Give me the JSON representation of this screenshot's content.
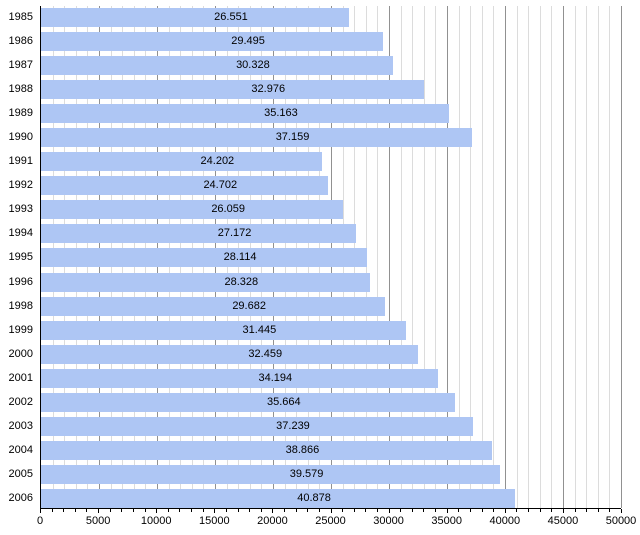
{
  "chart_data": {
    "type": "bar",
    "orientation": "horizontal",
    "title": "",
    "xlabel": "",
    "ylabel": "",
    "categories": [
      "1985",
      "1986",
      "1987",
      "1988",
      "1989",
      "1990",
      "1991",
      "1992",
      "1993",
      "1994",
      "1995",
      "1996",
      "1998",
      "1999",
      "2000",
      "2001",
      "2002",
      "2003",
      "2004",
      "2005",
      "2006"
    ],
    "values": [
      26551,
      29495,
      30328,
      32976,
      35163,
      37159,
      24202,
      24702,
      26059,
      27172,
      28114,
      28328,
      29682,
      31445,
      32459,
      34194,
      35664,
      37239,
      38866,
      39579,
      40878
    ],
    "bar_labels": [
      "26.551",
      "29.495",
      "30.328",
      "32.976",
      "35.163",
      "37.159",
      "24.202",
      "24.702",
      "26.059",
      "27.172",
      "28.114",
      "28.328",
      "29.682",
      "31.445",
      "32.459",
      "34.194",
      "35.664",
      "37.239",
      "38.866",
      "39.579",
      "40.878"
    ],
    "xlim": [
      0,
      50000
    ],
    "x_major_tick_step": 5000,
    "x_minor_tick_step": 1000,
    "x_tick_labels": [
      "0",
      "5000",
      "10000",
      "15000",
      "20000",
      "25000",
      "30000",
      "35000",
      "40000",
      "45000",
      "50000"
    ],
    "grid": "vertical minor every 1000, major every 5000",
    "legend": "none",
    "colors": {
      "bar_fill": "#aec6f4",
      "grid_minor": "#dcdcdc",
      "grid_major": "#919191",
      "axis": "#000000",
      "text": "#000000",
      "background": "#ffffff"
    }
  }
}
